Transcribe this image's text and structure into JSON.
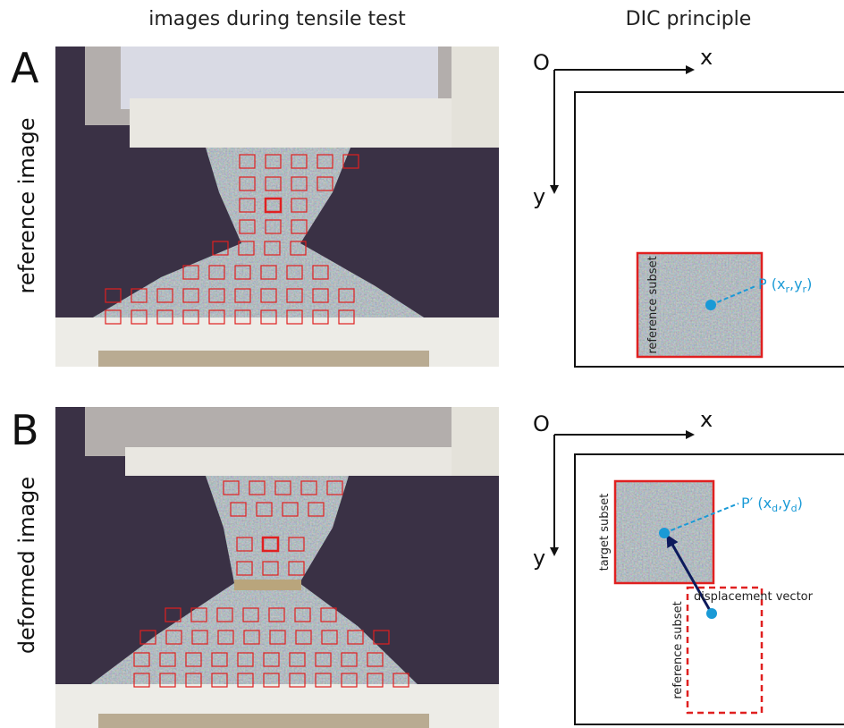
{
  "header": {
    "left_title": "images during tensile test",
    "right_title": "DIC principle"
  },
  "panels": [
    {
      "letter": "A",
      "row_label": "reference image",
      "origin": "O",
      "x_axis": "x",
      "y_axis": "y",
      "subsets": [
        {
          "label": "reference subset"
        }
      ],
      "point_label": [
        "P (x",
        "r",
        ",y",
        "r",
        ")"
      ]
    },
    {
      "letter": "B",
      "row_label": "deformed image",
      "origin": "O",
      "x_axis": "x",
      "y_axis": "y",
      "subsets": [
        {
          "label": "target subset"
        },
        {
          "label": "reference subset"
        }
      ],
      "point_label": [
        "P′ (x",
        "d",
        ",y",
        "d",
        ")"
      ],
      "vector_label": "displacement vector"
    }
  ]
}
